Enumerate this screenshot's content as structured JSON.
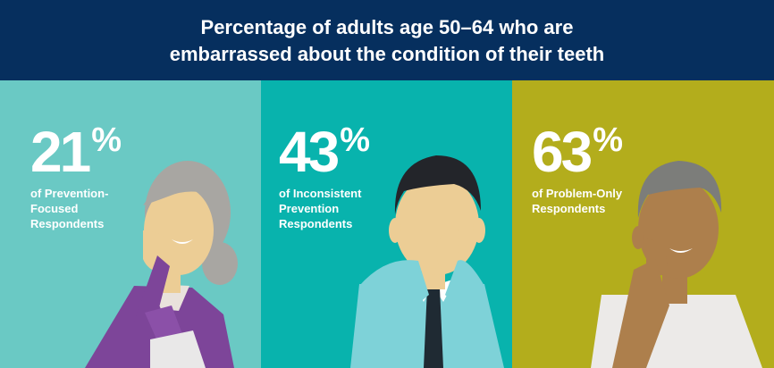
{
  "header": {
    "title_line1": "Percentage of adults age 50–64 who are",
    "title_line2": "embarrassed about the condition of their teeth"
  },
  "colors": {
    "header_bg": "#062f5e",
    "panel_1_bg": "#6ac9c4",
    "panel_2_bg": "#08b3ad",
    "panel_3_bg": "#b3ad1c"
  },
  "stats": [
    {
      "value": "21",
      "unit": "%",
      "label_lines": [
        "of Prevention-",
        "Focused",
        "Respondents"
      ]
    },
    {
      "value": "43",
      "unit": "%",
      "label_lines": [
        "of Inconsistent",
        "Prevention",
        "Respondents"
      ]
    },
    {
      "value": "63",
      "unit": "%",
      "label_lines": [
        "of Problem-Only",
        "Respondents"
      ]
    }
  ],
  "figures": [
    {
      "icon": "older-woman-covering-mouth-icon"
    },
    {
      "icon": "man-in-tie-covering-mouth-icon"
    },
    {
      "icon": "older-man-covering-mouth-icon"
    }
  ]
}
